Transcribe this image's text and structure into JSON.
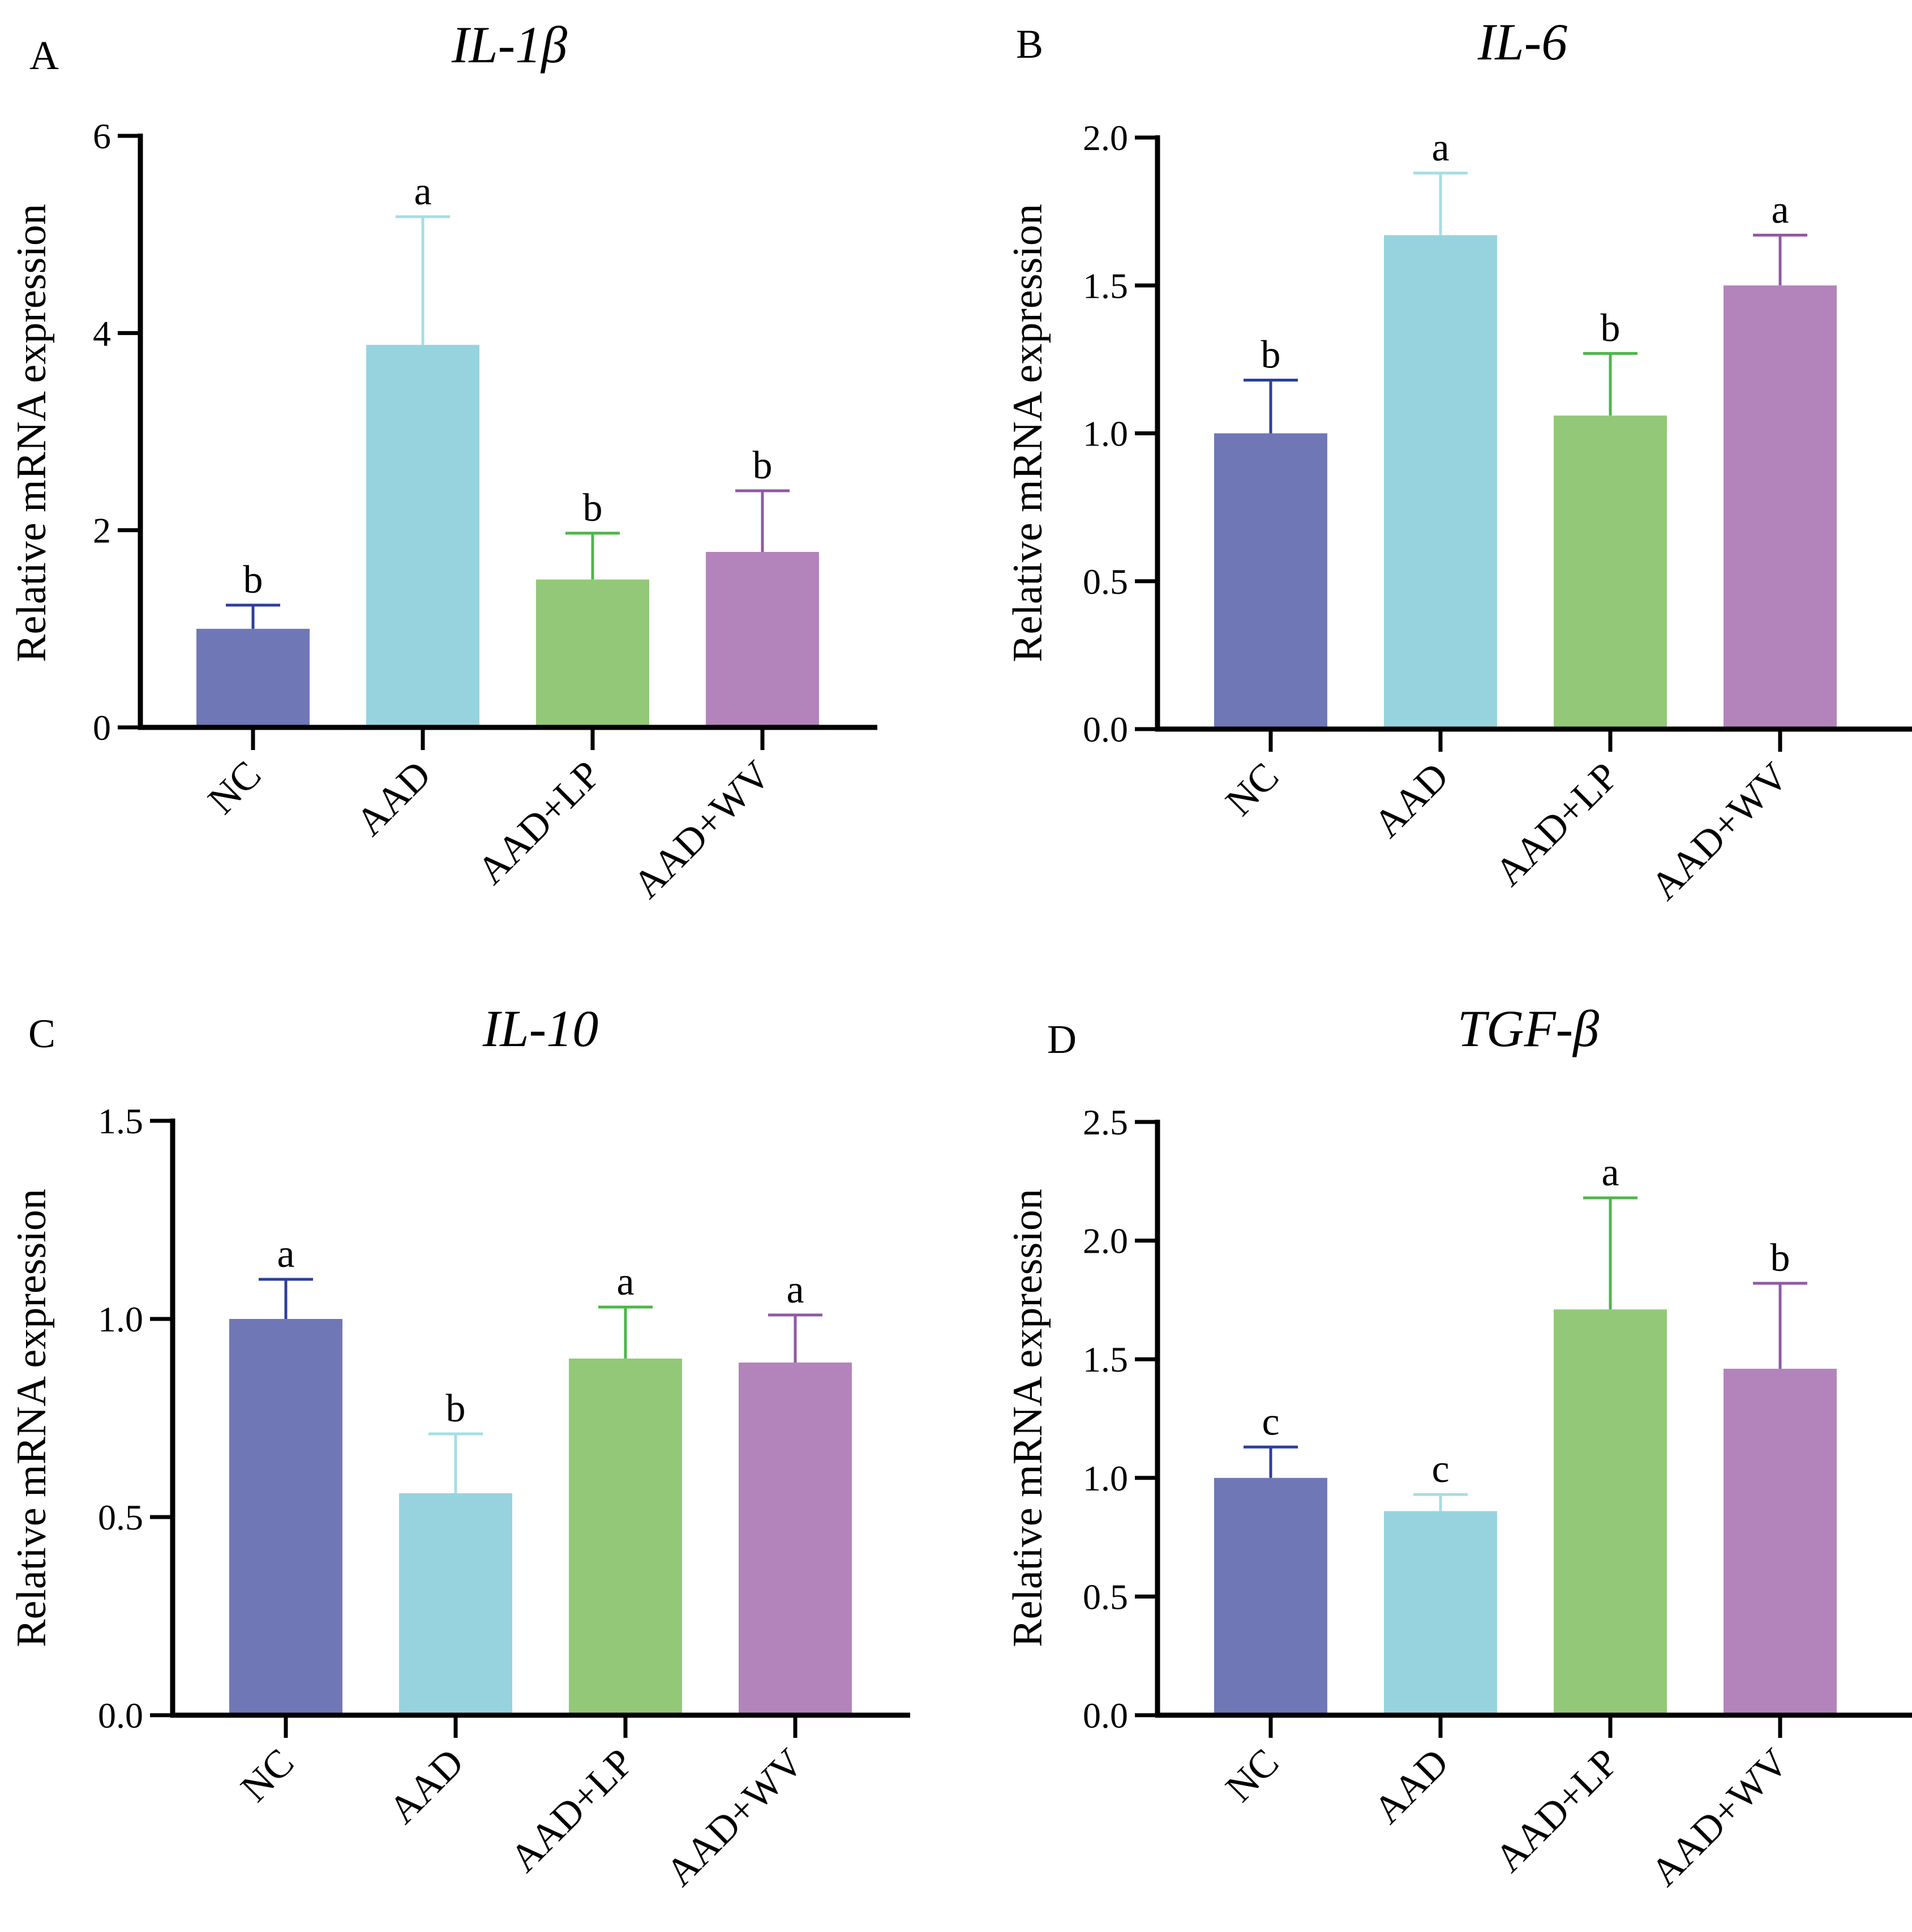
{
  "chart_data": [
    {
      "type": "bar",
      "panel": "A",
      "title": "IL-1β",
      "xlabel": "",
      "ylabel": "Relative mRNA expression",
      "categories": [
        "NC",
        "AAD",
        "AAD+LP",
        "AAD+WV"
      ],
      "values": [
        1.0,
        3.88,
        1.5,
        1.78
      ],
      "errors": [
        0.24,
        1.3,
        0.47,
        0.62
      ],
      "significance": [
        "b",
        "a",
        "b",
        "b"
      ],
      "ylim": [
        0,
        6
      ],
      "yticks": [
        0,
        2,
        4,
        6
      ],
      "ytick_labels": [
        "0",
        "2",
        "4",
        "6"
      ]
    },
    {
      "type": "bar",
      "panel": "B",
      "title": "IL-6",
      "xlabel": "",
      "ylabel": "Relative mRNA expression",
      "categories": [
        "NC",
        "AAD",
        "AAD+LP",
        "AAD+WV"
      ],
      "values": [
        1.0,
        1.67,
        1.06,
        1.5
      ],
      "errors": [
        0.18,
        0.21,
        0.21,
        0.17
      ],
      "significance": [
        "b",
        "a",
        "b",
        "a"
      ],
      "ylim": [
        0,
        2.0
      ],
      "yticks": [
        0,
        0.5,
        1.0,
        1.5,
        2.0
      ],
      "ytick_labels": [
        "0.0",
        "0.5",
        "1.0",
        "1.5",
        "2.0"
      ]
    },
    {
      "type": "bar",
      "panel": "C",
      "title": "IL-10",
      "xlabel": "",
      "ylabel": "Relative mRNA expression",
      "categories": [
        "NC",
        "AAD",
        "AAD+LP",
        "AAD+WV"
      ],
      "values": [
        1.0,
        0.56,
        0.9,
        0.89
      ],
      "errors": [
        0.1,
        0.15,
        0.13,
        0.12
      ],
      "significance": [
        "a",
        "b",
        "a",
        "a"
      ],
      "ylim": [
        0,
        1.5
      ],
      "yticks": [
        0,
        0.5,
        1.0,
        1.5
      ],
      "ytick_labels": [
        "0.0",
        "0.5",
        "1.0",
        "1.5"
      ]
    },
    {
      "type": "bar",
      "panel": "D",
      "title": "TGF-β",
      "xlabel": "",
      "ylabel": "Relative mRNA expression",
      "categories": [
        "NC",
        "AAD",
        "AAD+LP",
        "AAD+WV"
      ],
      "values": [
        1.0,
        0.86,
        1.71,
        1.46
      ],
      "errors": [
        0.13,
        0.07,
        0.47,
        0.36
      ],
      "significance": [
        "c",
        "c",
        "a",
        "b"
      ],
      "ylim": [
        0,
        2.5
      ],
      "yticks": [
        0,
        0.5,
        1.0,
        1.5,
        2.0,
        2.5
      ],
      "ytick_labels": [
        "0.0",
        "0.5",
        "1.0",
        "1.5",
        "2.0",
        "2.5"
      ]
    }
  ],
  "colors": {
    "bars": [
      "#7077b6",
      "#97d3df",
      "#93c878",
      "#b384bb"
    ],
    "error_bars": [
      "#2c3f9e",
      "#a6dde6",
      "#4cb748",
      "#9059a6"
    ]
  }
}
